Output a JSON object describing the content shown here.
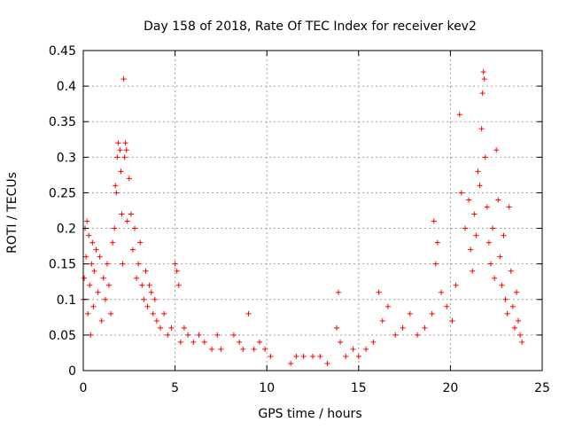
{
  "chart_data": {
    "type": "scatter",
    "title": "Day 158 of 2018, Rate Of TEC Index for receiver kev2",
    "xlabel": "GPS time / hours",
    "ylabel": "ROTI / TECUs",
    "xlim": [
      0,
      25
    ],
    "ylim": [
      0,
      0.45
    ],
    "xticks": [
      0,
      5,
      10,
      15,
      20,
      25
    ],
    "xtick_labels": [
      "0",
      "5",
      "10",
      "15",
      "20",
      "25"
    ],
    "yticks": [
      0,
      0.05,
      0.1,
      0.15,
      0.2,
      0.25,
      0.3,
      0.35,
      0.4,
      0.45
    ],
    "ytick_labels": [
      "0",
      "0.05",
      "0.1",
      "0.15",
      "0.2",
      "0.25",
      "0.3",
      "0.35",
      "0.4",
      "0.45"
    ],
    "grid": true,
    "marker": "+",
    "color": "#ff0000",
    "series": [
      {
        "name": "ROTI",
        "points": [
          [
            0.0,
            0.1
          ],
          [
            0.05,
            0.13
          ],
          [
            0.1,
            0.2
          ],
          [
            0.15,
            0.16
          ],
          [
            0.2,
            0.21
          ],
          [
            0.25,
            0.08
          ],
          [
            0.3,
            0.19
          ],
          [
            0.35,
            0.12
          ],
          [
            0.4,
            0.05
          ],
          [
            0.45,
            0.15
          ],
          [
            0.5,
            0.18
          ],
          [
            0.55,
            0.09
          ],
          [
            0.6,
            0.14
          ],
          [
            0.7,
            0.17
          ],
          [
            0.8,
            0.11
          ],
          [
            0.9,
            0.16
          ],
          [
            1.0,
            0.07
          ],
          [
            1.1,
            0.13
          ],
          [
            1.2,
            0.1
          ],
          [
            1.3,
            0.15
          ],
          [
            1.4,
            0.12
          ],
          [
            1.5,
            0.08
          ],
          [
            1.6,
            0.18
          ],
          [
            1.7,
            0.2
          ],
          [
            1.75,
            0.26
          ],
          [
            1.8,
            0.25
          ],
          [
            1.85,
            0.3
          ],
          [
            1.9,
            0.32
          ],
          [
            2.0,
            0.31
          ],
          [
            2.05,
            0.28
          ],
          [
            2.1,
            0.22
          ],
          [
            2.15,
            0.15
          ],
          [
            2.2,
            0.41
          ],
          [
            2.25,
            0.3
          ],
          [
            2.3,
            0.32
          ],
          [
            2.35,
            0.31
          ],
          [
            2.4,
            0.21
          ],
          [
            2.5,
            0.27
          ],
          [
            2.6,
            0.22
          ],
          [
            2.7,
            0.17
          ],
          [
            2.8,
            0.2
          ],
          [
            2.9,
            0.13
          ],
          [
            3.0,
            0.15
          ],
          [
            3.1,
            0.18
          ],
          [
            3.2,
            0.12
          ],
          [
            3.3,
            0.1
          ],
          [
            3.4,
            0.14
          ],
          [
            3.5,
            0.09
          ],
          [
            3.6,
            0.12
          ],
          [
            3.7,
            0.11
          ],
          [
            3.8,
            0.08
          ],
          [
            3.9,
            0.1
          ],
          [
            4.0,
            0.07
          ],
          [
            4.2,
            0.06
          ],
          [
            4.4,
            0.08
          ],
          [
            4.6,
            0.05
          ],
          [
            4.8,
            0.06
          ],
          [
            5.0,
            0.15
          ],
          [
            5.1,
            0.14
          ],
          [
            5.2,
            0.12
          ],
          [
            5.3,
            0.04
          ],
          [
            5.5,
            0.06
          ],
          [
            5.7,
            0.05
          ],
          [
            6.0,
            0.04
          ],
          [
            6.3,
            0.05
          ],
          [
            6.6,
            0.04
          ],
          [
            7.0,
            0.03
          ],
          [
            7.3,
            0.05
          ],
          [
            7.5,
            0.03
          ],
          [
            8.2,
            0.05
          ],
          [
            8.5,
            0.04
          ],
          [
            8.7,
            0.03
          ],
          [
            9.0,
            0.08
          ],
          [
            9.3,
            0.03
          ],
          [
            9.6,
            0.04
          ],
          [
            9.9,
            0.03
          ],
          [
            10.2,
            0.02
          ],
          [
            11.3,
            0.01
          ],
          [
            11.6,
            0.02
          ],
          [
            12.0,
            0.02
          ],
          [
            12.5,
            0.02
          ],
          [
            12.9,
            0.02
          ],
          [
            13.3,
            0.01
          ],
          [
            13.8,
            0.06
          ],
          [
            13.9,
            0.11
          ],
          [
            14.0,
            0.04
          ],
          [
            14.3,
            0.02
          ],
          [
            14.7,
            0.03
          ],
          [
            15.0,
            0.02
          ],
          [
            15.4,
            0.03
          ],
          [
            15.8,
            0.04
          ],
          [
            16.1,
            0.11
          ],
          [
            16.3,
            0.07
          ],
          [
            16.6,
            0.09
          ],
          [
            17.0,
            0.05
          ],
          [
            17.4,
            0.06
          ],
          [
            17.8,
            0.08
          ],
          [
            18.2,
            0.05
          ],
          [
            18.6,
            0.06
          ],
          [
            19.0,
            0.08
          ],
          [
            19.1,
            0.21
          ],
          [
            19.2,
            0.15
          ],
          [
            19.3,
            0.18
          ],
          [
            19.5,
            0.11
          ],
          [
            19.8,
            0.09
          ],
          [
            20.1,
            0.07
          ],
          [
            20.3,
            0.12
          ],
          [
            20.5,
            0.36
          ],
          [
            20.6,
            0.25
          ],
          [
            20.8,
            0.2
          ],
          [
            21.0,
            0.24
          ],
          [
            21.1,
            0.17
          ],
          [
            21.2,
            0.14
          ],
          [
            21.3,
            0.22
          ],
          [
            21.4,
            0.19
          ],
          [
            21.5,
            0.28
          ],
          [
            21.6,
            0.26
          ],
          [
            21.7,
            0.34
          ],
          [
            21.75,
            0.39
          ],
          [
            21.8,
            0.42
          ],
          [
            21.85,
            0.41
          ],
          [
            21.9,
            0.3
          ],
          [
            22.0,
            0.23
          ],
          [
            22.1,
            0.18
          ],
          [
            22.2,
            0.15
          ],
          [
            22.3,
            0.2
          ],
          [
            22.4,
            0.13
          ],
          [
            22.5,
            0.31
          ],
          [
            22.6,
            0.24
          ],
          [
            22.7,
            0.16
          ],
          [
            22.8,
            0.12
          ],
          [
            22.9,
            0.19
          ],
          [
            23.0,
            0.1
          ],
          [
            23.1,
            0.08
          ],
          [
            23.2,
            0.23
          ],
          [
            23.3,
            0.14
          ],
          [
            23.4,
            0.09
          ],
          [
            23.5,
            0.06
          ],
          [
            23.6,
            0.11
          ],
          [
            23.7,
            0.07
          ],
          [
            23.8,
            0.05
          ],
          [
            23.9,
            0.04
          ]
        ]
      }
    ]
  }
}
